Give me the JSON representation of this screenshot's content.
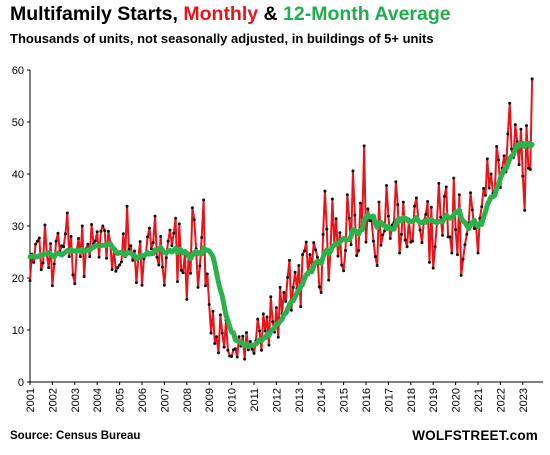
{
  "header": {
    "title_part1": "Multifamily Starts, ",
    "title_part2": "Monthly",
    "title_part3": " & ",
    "title_part4": "12-Month Average",
    "subtitle": "Thousands of units, not seasonally adjusted, in buildings of 5+ units"
  },
  "footer": {
    "source": "Source: Census Bureau",
    "brand": "WOLFSTREET.com"
  },
  "colors": {
    "monthly": "#e8141b",
    "average": "#2bb24c",
    "markers": "#111111",
    "title_red": "#e8141b",
    "title_green": "#1fae4b"
  },
  "chart_data": {
    "type": "line",
    "title": "Multifamily Starts, Monthly & 12-Month Average",
    "subtitle": "Thousands of units, not seasonally adjusted, in buildings of 5+ units",
    "xlabel": "",
    "ylabel": "",
    "ylim": [
      0,
      60
    ],
    "yticks": [
      0,
      10,
      20,
      30,
      40,
      50,
      60
    ],
    "xlim": [
      "2001-01",
      "2023-06"
    ],
    "xticks": [
      "2001",
      "2002",
      "2003",
      "2004",
      "2005",
      "2006",
      "2007",
      "2008",
      "2009",
      "2010",
      "2011",
      "2012",
      "2013",
      "2014",
      "2015",
      "2016",
      "2017",
      "2018",
      "2019",
      "2020",
      "2021",
      "2022",
      "2023"
    ],
    "grid": false,
    "legend": "in title",
    "series": [
      {
        "name": "Monthly",
        "frequency": "monthly",
        "start": "2001-01",
        "values": [
          19.5,
          24.6,
          23.0,
          26.5,
          27.1,
          27.7,
          21.6,
          22.9,
          30.2,
          24.5,
          22.0,
          26.6,
          18.5,
          22.7,
          27.1,
          28.6,
          25.1,
          26.2,
          26.0,
          28.5,
          32.5,
          24.1,
          28.0,
          20.6,
          18.9,
          25.1,
          27.6,
          24.1,
          30.0,
          20.3,
          25.6,
          26.5,
          24.1,
          30.3,
          26.6,
          27.1,
          28.9,
          24.0,
          29.0,
          30.0,
          29.1,
          23.8,
          29.0,
          26.8,
          21.6,
          25.5,
          21.3,
          22.0,
          22.5,
          23.1,
          28.5,
          24.1,
          33.8,
          25.5,
          26.2,
          23.4,
          25.2,
          19.1,
          23.8,
          27.0,
          18.6,
          23.7,
          24.3,
          27.9,
          29.6,
          25.6,
          26.8,
          31.9,
          24.0,
          22.5,
          28.0,
          22.1,
          18.6,
          23.9,
          27.1,
          29.2,
          26.2,
          28.6,
          31.5,
          19.3,
          30.4,
          21.5,
          21.0,
          24.8,
          15.9,
          24.7,
          20.9,
          33.5,
          31.2,
          25.6,
          18.2,
          22.3,
          27.8,
          35.0,
          18.5,
          20.8,
          14.9,
          9.4,
          13.6,
          7.4,
          8.7,
          5.6,
          12.9,
          9.4,
          6.7,
          11.9,
          6.1,
          5.0,
          4.9,
          6.2,
          6.4,
          4.8,
          8.7,
          6.9,
          8.8,
          4.4,
          9.5,
          6.2,
          7.8,
          6.3,
          5.5,
          7.9,
          12.1,
          9.8,
          6.1,
          13.1,
          9.8,
          12.5,
          7.1,
          16.4,
          11.6,
          9.6,
          14.3,
          8.6,
          18.2,
          13.1,
          17.2,
          15.5,
          20.1,
          23.4,
          13.8,
          18.2,
          21.1,
          17.9,
          22.4,
          14.5,
          24.5,
          25.2,
          26.9,
          20.6,
          24.5,
          22.1,
          26.8,
          25.4,
          24.0,
          18.3,
          17.2,
          28.4,
          36.7,
          29.4,
          19.6,
          25.3,
          35.2,
          26.5,
          31.4,
          24.2,
          28.7,
          22.5,
          21.4,
          25.3,
          36.0,
          31.5,
          26.4,
          40.6,
          32.1,
          24.3,
          25.3,
          34.4,
          30.7,
          45.4,
          26.9,
          33.3,
          31.0,
          31.0,
          27.1,
          24.1,
          22.4,
          34.6,
          26.3,
          28.3,
          29.1,
          37.8,
          31.9,
          27.6,
          30.2,
          30.7,
          38.5,
          34.1,
          24.8,
          28.4,
          34.6,
          27.3,
          26.0,
          31.3,
          26.9,
          27.1,
          33.8,
          35.4,
          31.4,
          29.2,
          26.8,
          31.0,
          32.2,
          34.7,
          23.0,
          33.6,
          21.9,
          26.0,
          30.5,
          38.2,
          31.7,
          28.2,
          35.7,
          37.5,
          27.9,
          27.9,
          24.8,
          39.2,
          29.3,
          24.5,
          36.0,
          20.5,
          23.6,
          26.4,
          28.4,
          30.5,
          36.4,
          33.1,
          29.5,
          29.8,
          24.8,
          31.5,
          33.7,
          37.2,
          35.9,
          42.9,
          37.3,
          40.0,
          36.3,
          36.6,
          45.3,
          42.7,
          37.4,
          41.1,
          43.5,
          40.4,
          47.7,
          53.6,
          44.8,
          43.2,
          49.5,
          46.2,
          41.8,
          48.6,
          39.6,
          33.0,
          49.3,
          41.1,
          40.9,
          58.3
        ]
      },
      {
        "name": "12-Month Average",
        "frequency": "monthly",
        "start": "2001-01",
        "values": [
          24.1,
          24.2,
          24.2,
          24.0,
          24.1,
          24.3,
          24.4,
          24.5,
          24.6,
          24.7,
          24.9,
          24.6,
          24.2,
          24.1,
          24.6,
          24.8,
          24.6,
          24.4,
          24.7,
          25.0,
          25.3,
          25.2,
          25.4,
          25.2,
          25.2,
          25.3,
          25.3,
          25.1,
          25.5,
          25.2,
          25.2,
          25.4,
          25.3,
          25.8,
          25.9,
          26.2,
          26.2,
          26.2,
          26.2,
          26.3,
          26.3,
          26.3,
          26.6,
          26.6,
          26.0,
          25.6,
          25.1,
          24.7,
          24.9,
          24.9,
          24.8,
          24.4,
          24.8,
          24.9,
          24.8,
          24.5,
          24.3,
          23.7,
          23.9,
          24.3,
          24.3,
          24.3,
          24.5,
          24.9,
          24.6,
          24.7,
          24.7,
          25.4,
          25.4,
          25.6,
          25.9,
          25.3,
          24.9,
          24.8,
          25.1,
          25.3,
          25.0,
          25.3,
          25.7,
          24.9,
          25.5,
          25.4,
          24.8,
          25.1,
          24.8,
          24.2,
          23.7,
          24.4,
          24.9,
          25.1,
          24.7,
          24.9,
          24.6,
          25.8,
          25.5,
          25.3,
          25.2,
          24.7,
          24.1,
          22.7,
          20.8,
          19.1,
          17.7,
          16.5,
          14.7,
          12.8,
          11.9,
          10.6,
          9.6,
          9.5,
          8.1,
          7.9,
          7.8,
          7.6,
          7.3,
          7.0,
          7.3,
          6.8,
          7.0,
          7.1,
          7.1,
          7.3,
          7.7,
          8.1,
          7.9,
          8.4,
          8.5,
          9.1,
          8.9,
          9.8,
          10.1,
          10.4,
          11.1,
          11.2,
          11.7,
          12.0,
          13.0,
          13.2,
          14.0,
          14.9,
          15.5,
          15.6,
          16.4,
          17.1,
          17.8,
          18.3,
          18.8,
          19.8,
          20.6,
          21.0,
          21.3,
          21.2,
          22.3,
          23.0,
          23.2,
          23.2,
          22.8,
          24.0,
          25.0,
          25.4,
          24.7,
          25.1,
          26.0,
          26.3,
          26.6,
          26.5,
          26.9,
          27.3,
          27.6,
          27.4,
          27.3,
          27.4,
          28.0,
          29.3,
          29.1,
          28.9,
          28.4,
          29.2,
          29.3,
          31.2,
          31.6,
          32.2,
          31.8,
          31.8,
          31.9,
          30.5,
          29.7,
          30.6,
          30.7,
          30.2,
          30.1,
          29.5,
          29.9,
          29.5,
          29.4,
          29.4,
          30.4,
          31.2,
          31.4,
          30.9,
          31.6,
          31.5,
          31.3,
          30.8,
          30.9,
          30.9,
          31.2,
          31.6,
          31.0,
          30.6,
          30.7,
          30.9,
          30.7,
          31.3,
          31.1,
          31.3,
          30.9,
          30.8,
          30.6,
          30.9,
          30.9,
          30.8,
          31.5,
          32.1,
          31.7,
          31.5,
          31.6,
          32.1,
          32.7,
          32.6,
          33.1,
          31.6,
          30.9,
          30.7,
          30.1,
          29.5,
          30.2,
          30.7,
          31.1,
          30.3,
          29.9,
          30.5,
          30.3,
          31.7,
          32.7,
          34.1,
          34.8,
          35.6,
          35.6,
          35.9,
          37.2,
          38.1,
          39.2,
          40.0,
          40.8,
          41.0,
          42.0,
          42.9,
          43.5,
          43.7,
          44.8,
          45.6,
          45.3,
          45.8,
          45.9,
          45.3,
          45.8,
          45.9,
          45.3,
          45.7
        ]
      }
    ]
  }
}
